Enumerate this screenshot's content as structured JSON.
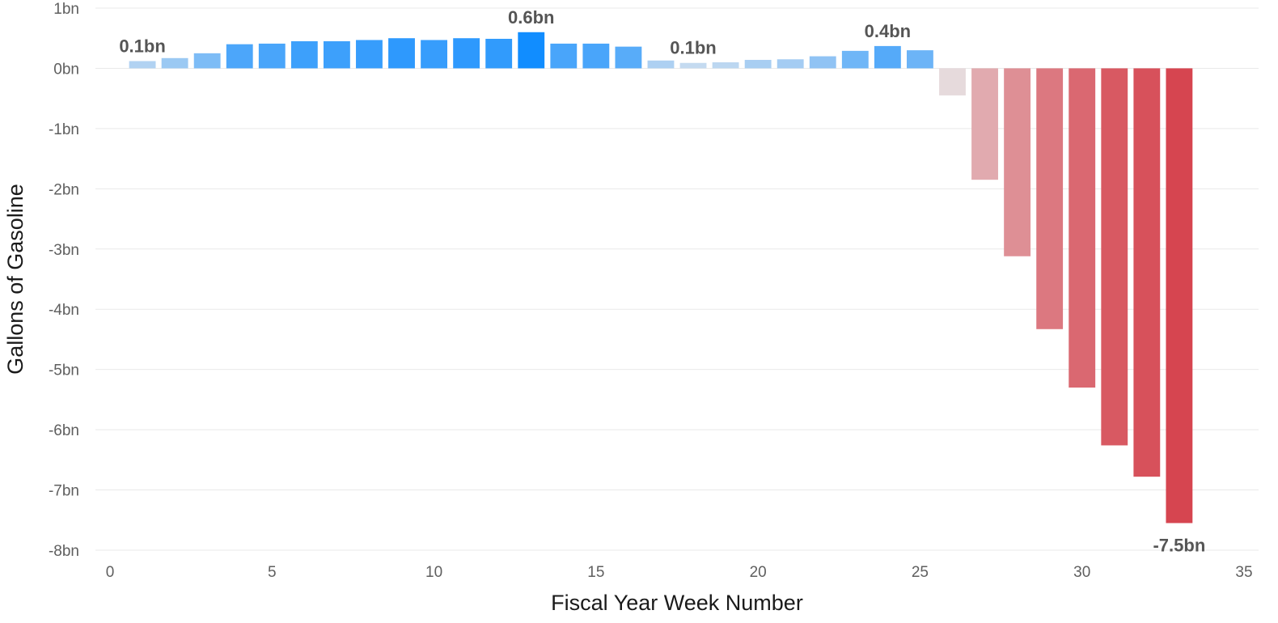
{
  "chart_data": {
    "type": "bar",
    "xlabel": "Fiscal Year Week Number",
    "ylabel": "Gallons of Gasoline",
    "xlim": [
      0,
      35
    ],
    "ylim": [
      -8,
      1
    ],
    "x_ticks": [
      0,
      5,
      10,
      15,
      20,
      25,
      30,
      35
    ],
    "y_ticks": [
      1,
      0,
      -1,
      -2,
      -3,
      -4,
      -5,
      -6,
      -7,
      -8
    ],
    "y_tick_labels": [
      "1bn",
      "0bn",
      "-1bn",
      "-2bn",
      "-3bn",
      "-4bn",
      "-5bn",
      "-6bn",
      "-7bn",
      "-8bn"
    ],
    "grid": true,
    "unit": "bn",
    "weeks": [
      1,
      2,
      3,
      4,
      5,
      6,
      7,
      8,
      9,
      10,
      11,
      12,
      13,
      14,
      15,
      16,
      17,
      18,
      19,
      20,
      21,
      22,
      23,
      24,
      25,
      26,
      27,
      28,
      29,
      30,
      31,
      32,
      33
    ],
    "values": [
      0.12,
      0.17,
      0.25,
      0.4,
      0.41,
      0.45,
      0.45,
      0.47,
      0.5,
      0.47,
      0.5,
      0.49,
      0.6,
      0.41,
      0.41,
      0.36,
      0.13,
      0.09,
      0.1,
      0.14,
      0.15,
      0.2,
      0.29,
      0.37,
      0.3,
      -0.45,
      -1.85,
      -3.12,
      -4.33,
      -5.3,
      -6.26,
      -6.78,
      -7.55
    ],
    "annotations": [
      {
        "week": 1,
        "text": "0.1bn"
      },
      {
        "week": 13,
        "text": "0.6bn"
      },
      {
        "week": 18,
        "text": "0.1bn"
      },
      {
        "week": 24,
        "text": "0.4bn"
      },
      {
        "week": 33,
        "text": "-7.5bn"
      }
    ],
    "colors": {
      "positive_light": "#c4daf0",
      "positive_strong": "#118dff",
      "negative_light": "#e6dadc",
      "negative_strong": "#d64550"
    }
  }
}
